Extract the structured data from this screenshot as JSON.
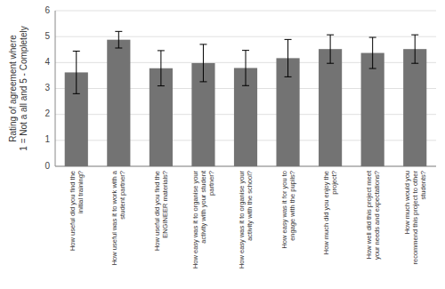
{
  "chart_data": {
    "type": "bar",
    "categories": [
      "How useful did you find the\ninitial training?",
      "How useful was it to work with a\nstudent partner?",
      "How useful did you find the\nENGINEER materials?",
      "How easy was it to organise your\nactivity with your student\npartner?",
      "How easy was it to organise your\nactivity with the school?",
      "How easy was it for you to\nengage with the pupils?",
      "How much did you enjoy the\nproject?",
      "How well did this project meet\nyour needs and expectations?",
      "How much would you\nrecommend this project to other\nstudents?"
    ],
    "values": [
      3.62,
      4.88,
      3.78,
      3.98,
      3.79,
      4.17,
      4.52,
      4.37,
      4.52
    ],
    "errors": [
      0.82,
      0.32,
      0.68,
      0.72,
      0.68,
      0.72,
      0.55,
      0.6,
      0.55
    ],
    "color": "#737373",
    "ylabel": "Rating of agreement where\n1 = Not a all and 5 - Completely",
    "ylim": [
      0,
      6
    ],
    "yticks": [
      0,
      1,
      2,
      3,
      4,
      5,
      6
    ],
    "grid": true
  }
}
